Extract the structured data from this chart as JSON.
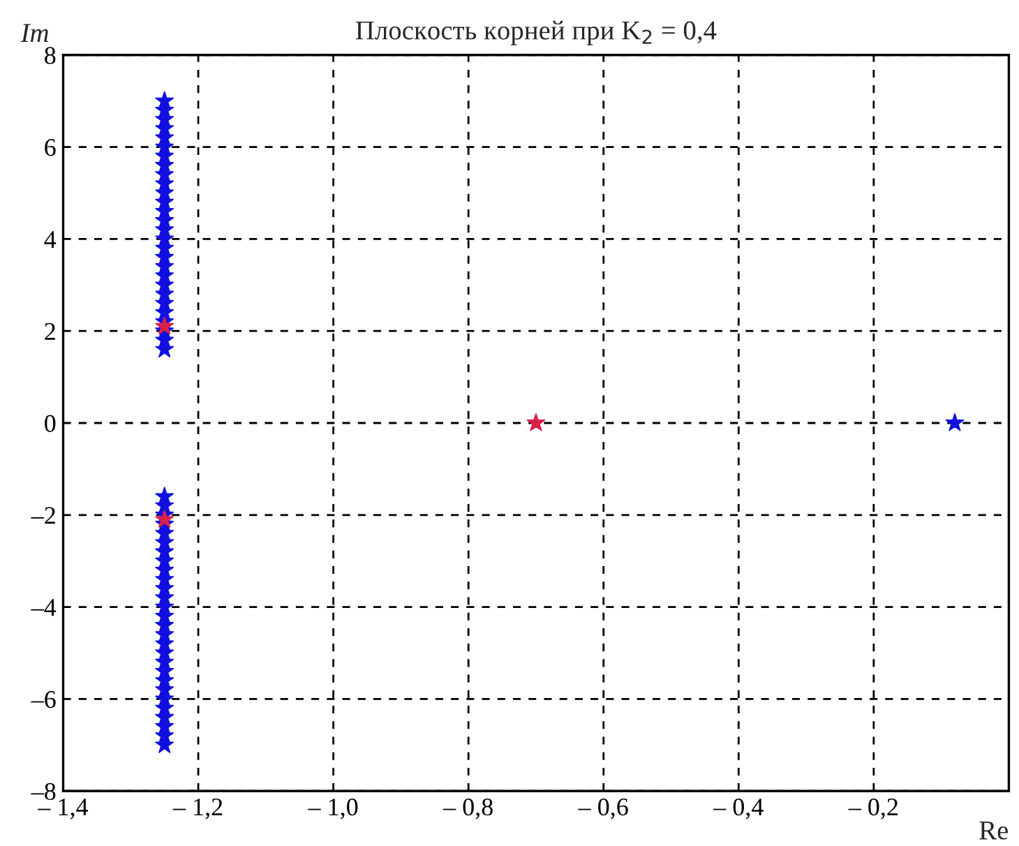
{
  "chart_data": {
    "type": "scatter",
    "title": "Плоскость корней при K$_{2}$ = 0,4",
    "xlabel": "Re",
    "ylabel": "Im",
    "xlim": [
      -1.4,
      0
    ],
    "ylim": [
      -8,
      8
    ],
    "xticks": [
      {
        "value": -1.4,
        "label": "– 1,4"
      },
      {
        "value": -1.2,
        "label": "– 1,2"
      },
      {
        "value": -1.0,
        "label": "– 1,0"
      },
      {
        "value": -0.8,
        "label": "– 0,8"
      },
      {
        "value": -0.6,
        "label": "– 0,6"
      },
      {
        "value": -0.4,
        "label": "– 0,4"
      },
      {
        "value": -0.2,
        "label": "– 0,2"
      }
    ],
    "yticks": [
      {
        "value": -8,
        "label": "–8"
      },
      {
        "value": -6,
        "label": "–6"
      },
      {
        "value": -4,
        "label": "–4"
      },
      {
        "value": -2,
        "label": "–2"
      },
      0,
      2,
      4,
      6,
      8
    ],
    "grid": true,
    "marker": "star",
    "series": [
      {
        "color": "#1010e0",
        "x": [
          -1.25,
          -1.25,
          -1.25,
          -1.25,
          -1.25,
          -1.25,
          -1.25,
          -1.25,
          -1.25,
          -1.25,
          -1.25,
          -1.25,
          -1.25,
          -1.25,
          -1.25,
          -1.25,
          -1.25,
          -1.25,
          -1.25,
          -1.25,
          -1.25,
          -1.25,
          -1.25,
          -1.25,
          -1.25,
          -1.25,
          -1.25,
          -1.25
        ],
        "values": [
          1.6,
          1.8,
          2.0,
          2.2,
          2.4,
          2.6,
          2.8,
          3.0,
          3.2,
          3.4,
          3.6,
          3.8,
          4.0,
          4.2,
          4.4,
          4.6,
          4.8,
          5.0,
          5.2,
          5.4,
          5.6,
          5.8,
          6.0,
          6.2,
          6.4,
          6.6,
          6.8,
          7.0
        ]
      },
      {
        "color": "#1010e0",
        "x": [
          -1.25,
          -1.25,
          -1.25,
          -1.25,
          -1.25,
          -1.25,
          -1.25,
          -1.25,
          -1.25,
          -1.25,
          -1.25,
          -1.25,
          -1.25,
          -1.25,
          -1.25,
          -1.25,
          -1.25,
          -1.25,
          -1.25,
          -1.25,
          -1.25,
          -1.25,
          -1.25,
          -1.25,
          -1.25,
          -1.25,
          -1.25,
          -1.25
        ],
        "values": [
          -1.6,
          -1.8,
          -2.0,
          -2.2,
          -2.4,
          -2.6,
          -2.8,
          -3.0,
          -3.2,
          -3.4,
          -3.6,
          -3.8,
          -4.0,
          -4.2,
          -4.4,
          -4.6,
          -4.8,
          -5.0,
          -5.2,
          -5.4,
          -5.6,
          -5.8,
          -6.0,
          -6.2,
          -6.4,
          -6.6,
          -6.8,
          -7.0
        ]
      },
      {
        "color": "#1010e0",
        "x": [
          -0.08
        ],
        "values": [
          0
        ]
      },
      {
        "color": "#d8204a",
        "x": [
          -1.25,
          -1.25,
          -0.7
        ],
        "values": [
          2.1,
          -2.1,
          0
        ]
      }
    ]
  }
}
